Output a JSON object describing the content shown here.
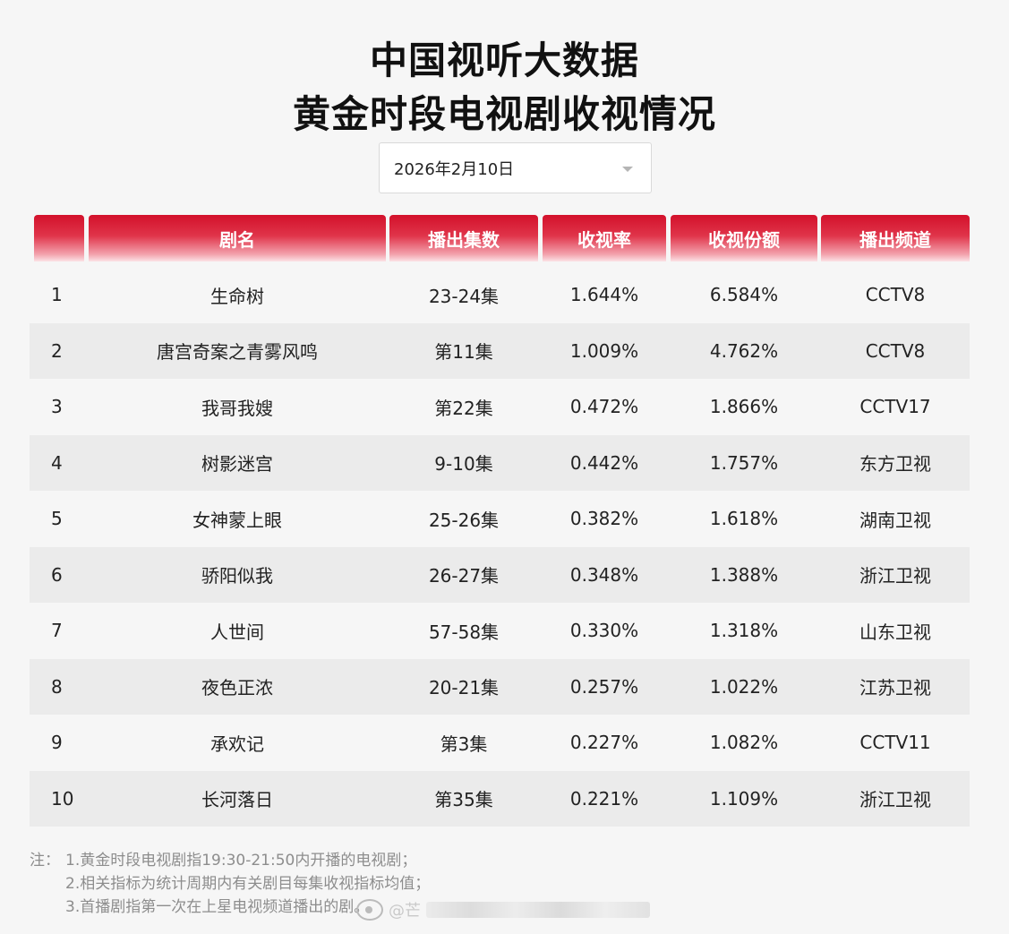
{
  "title_line1": "中国视听大数据",
  "title_line2": "黄金时段电视剧收视情况",
  "date_select": {
    "value": "2026年2月10日"
  },
  "columns": [
    "",
    "剧名",
    "播出集数",
    "收视率",
    "收视份额",
    "播出频道"
  ],
  "rows": [
    {
      "rank": "1",
      "name": "生命树",
      "episodes": "23-24集",
      "rating": "1.644%",
      "share": "6.584%",
      "channel": "CCTV8"
    },
    {
      "rank": "2",
      "name": "唐宫奇案之青雾风鸣",
      "episodes": "第11集",
      "rating": "1.009%",
      "share": "4.762%",
      "channel": "CCTV8"
    },
    {
      "rank": "3",
      "name": "我哥我嫂",
      "episodes": "第22集",
      "rating": "0.472%",
      "share": "1.866%",
      "channel": "CCTV17"
    },
    {
      "rank": "4",
      "name": "树影迷宫",
      "episodes": "9-10集",
      "rating": "0.442%",
      "share": "1.757%",
      "channel": "东方卫视"
    },
    {
      "rank": "5",
      "name": "女神蒙上眼",
      "episodes": "25-26集",
      "rating": "0.382%",
      "share": "1.618%",
      "channel": "湖南卫视"
    },
    {
      "rank": "6",
      "name": "骄阳似我",
      "episodes": "26-27集",
      "rating": "0.348%",
      "share": "1.388%",
      "channel": "浙江卫视"
    },
    {
      "rank": "7",
      "name": "人世间",
      "episodes": "57-58集",
      "rating": "0.330%",
      "share": "1.318%",
      "channel": "山东卫视"
    },
    {
      "rank": "8",
      "name": "夜色正浓",
      "episodes": "20-21集",
      "rating": "0.257%",
      "share": "1.022%",
      "channel": "江苏卫视"
    },
    {
      "rank": "9",
      "name": "承欢记",
      "episodes": "第3集",
      "rating": "0.227%",
      "share": "1.082%",
      "channel": "CCTV11"
    },
    {
      "rank": "10",
      "name": "长河落日",
      "episodes": "第35集",
      "rating": "0.221%",
      "share": "1.109%",
      "channel": "浙江卫视"
    }
  ],
  "notes": {
    "label": "注：",
    "items": [
      "1.黄金时段电视剧指19:30-21:50内开播的电视剧；",
      "2.相关指标为统计周期内有关剧目每集收视指标均值；",
      "3.首播剧指第一次在上星电视频道播出的剧。"
    ]
  },
  "watermark": {
    "handle": "@芒"
  },
  "colors": {
    "header_red": "#d3112b",
    "row_alt": "#ebebeb",
    "page_bg": "#f6f6f6"
  },
  "icons": {
    "dropdown": "caret-down-icon",
    "weibo": "weibo-logo-icon"
  }
}
